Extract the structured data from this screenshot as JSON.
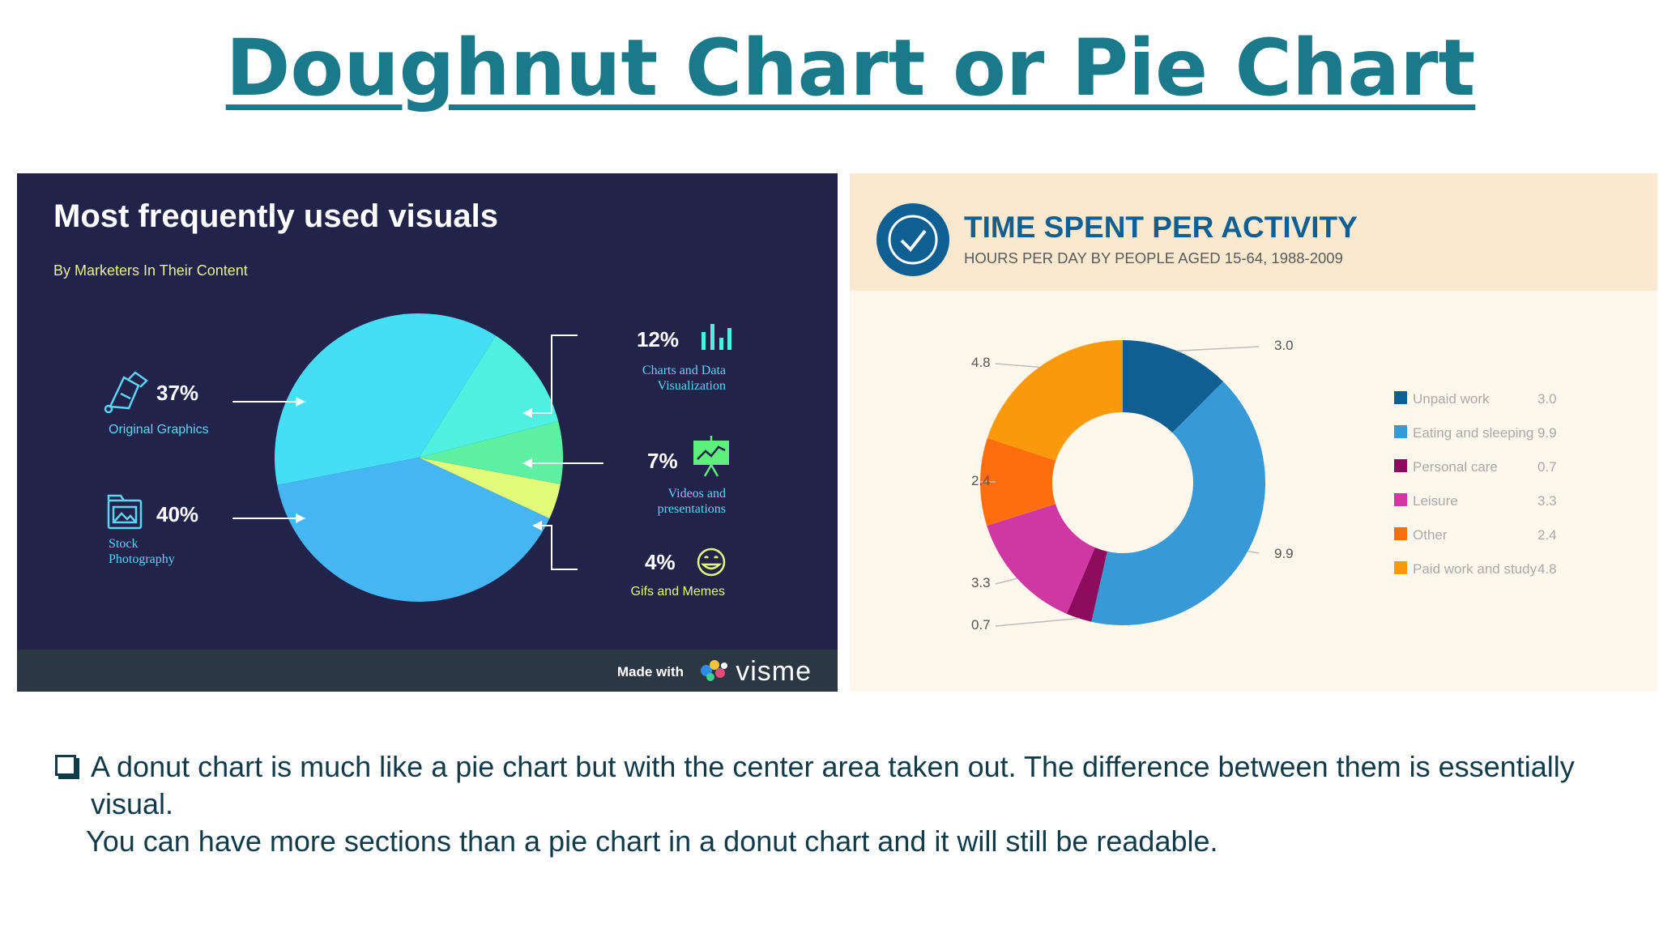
{
  "slide": {
    "title": "Doughnut Chart or Pie Chart",
    "bullet_text": "A donut chart is much like a pie chart but with the center area taken out. The difference between them is essentially visual.",
    "second_line": "You can have more sections than a pie chart in a donut chart and it will still be readable."
  },
  "footer": {
    "made_with": "Made with",
    "brand": "visme"
  },
  "colors": {
    "title": "#1a7a89",
    "left_bg": "#22234a",
    "right_bg": "#fdf7ec",
    "right_header": "#fbe9cf"
  },
  "chart_data": [
    {
      "type": "pie",
      "title": "Most frequently used visuals",
      "subtitle": "By Marketers In Their Content",
      "slices": [
        {
          "name": "Stock Photography",
          "value": 40,
          "label": "40%",
          "color": "#45b6f2",
          "icon": "photo-folder-icon"
        },
        {
          "name": "Original Graphics",
          "value": 37,
          "label": "37%",
          "color": "#46def5",
          "icon": "pen-tool-icon"
        },
        {
          "name": "Charts and Data Visualization",
          "value": 12,
          "label": "12%",
          "color": "#4ff0e2",
          "icon": "bar-chart-icon"
        },
        {
          "name": "Videos and presentations",
          "value": 7,
          "label": "7%",
          "color": "#5df0a2",
          "icon": "presentation-board-icon"
        },
        {
          "name": "Gifs and Memes",
          "value": 4,
          "label": "4%",
          "color": "#e2fb79",
          "icon": "smiley-icon"
        }
      ]
    },
    {
      "type": "pie",
      "donut": true,
      "title": "TIME SPENT PER ACTIVITY",
      "subtitle": "HOURS PER DAY BY PEOPLE AGED 15-64, 1988-2009",
      "icon": "clock-check-icon",
      "slices": [
        {
          "name": "Unpaid work",
          "value": 3.0,
          "label": "3.0",
          "color": "#0f5f93"
        },
        {
          "name": "Eating and sleeping",
          "value": 9.9,
          "label": "9.9",
          "color": "#3799d5"
        },
        {
          "name": "Personal care",
          "value": 0.7,
          "label": "0.7",
          "color": "#8c0b5c"
        },
        {
          "name": "Leisure",
          "value": 3.3,
          "label": "3.3",
          "color": "#cf37a3"
        },
        {
          "name": "Other",
          "value": 2.4,
          "label": "2.4",
          "color": "#ff6e0d"
        },
        {
          "name": "Paid work and study",
          "value": 4.8,
          "label": "4.8",
          "color": "#fa9a0b"
        }
      ]
    }
  ]
}
